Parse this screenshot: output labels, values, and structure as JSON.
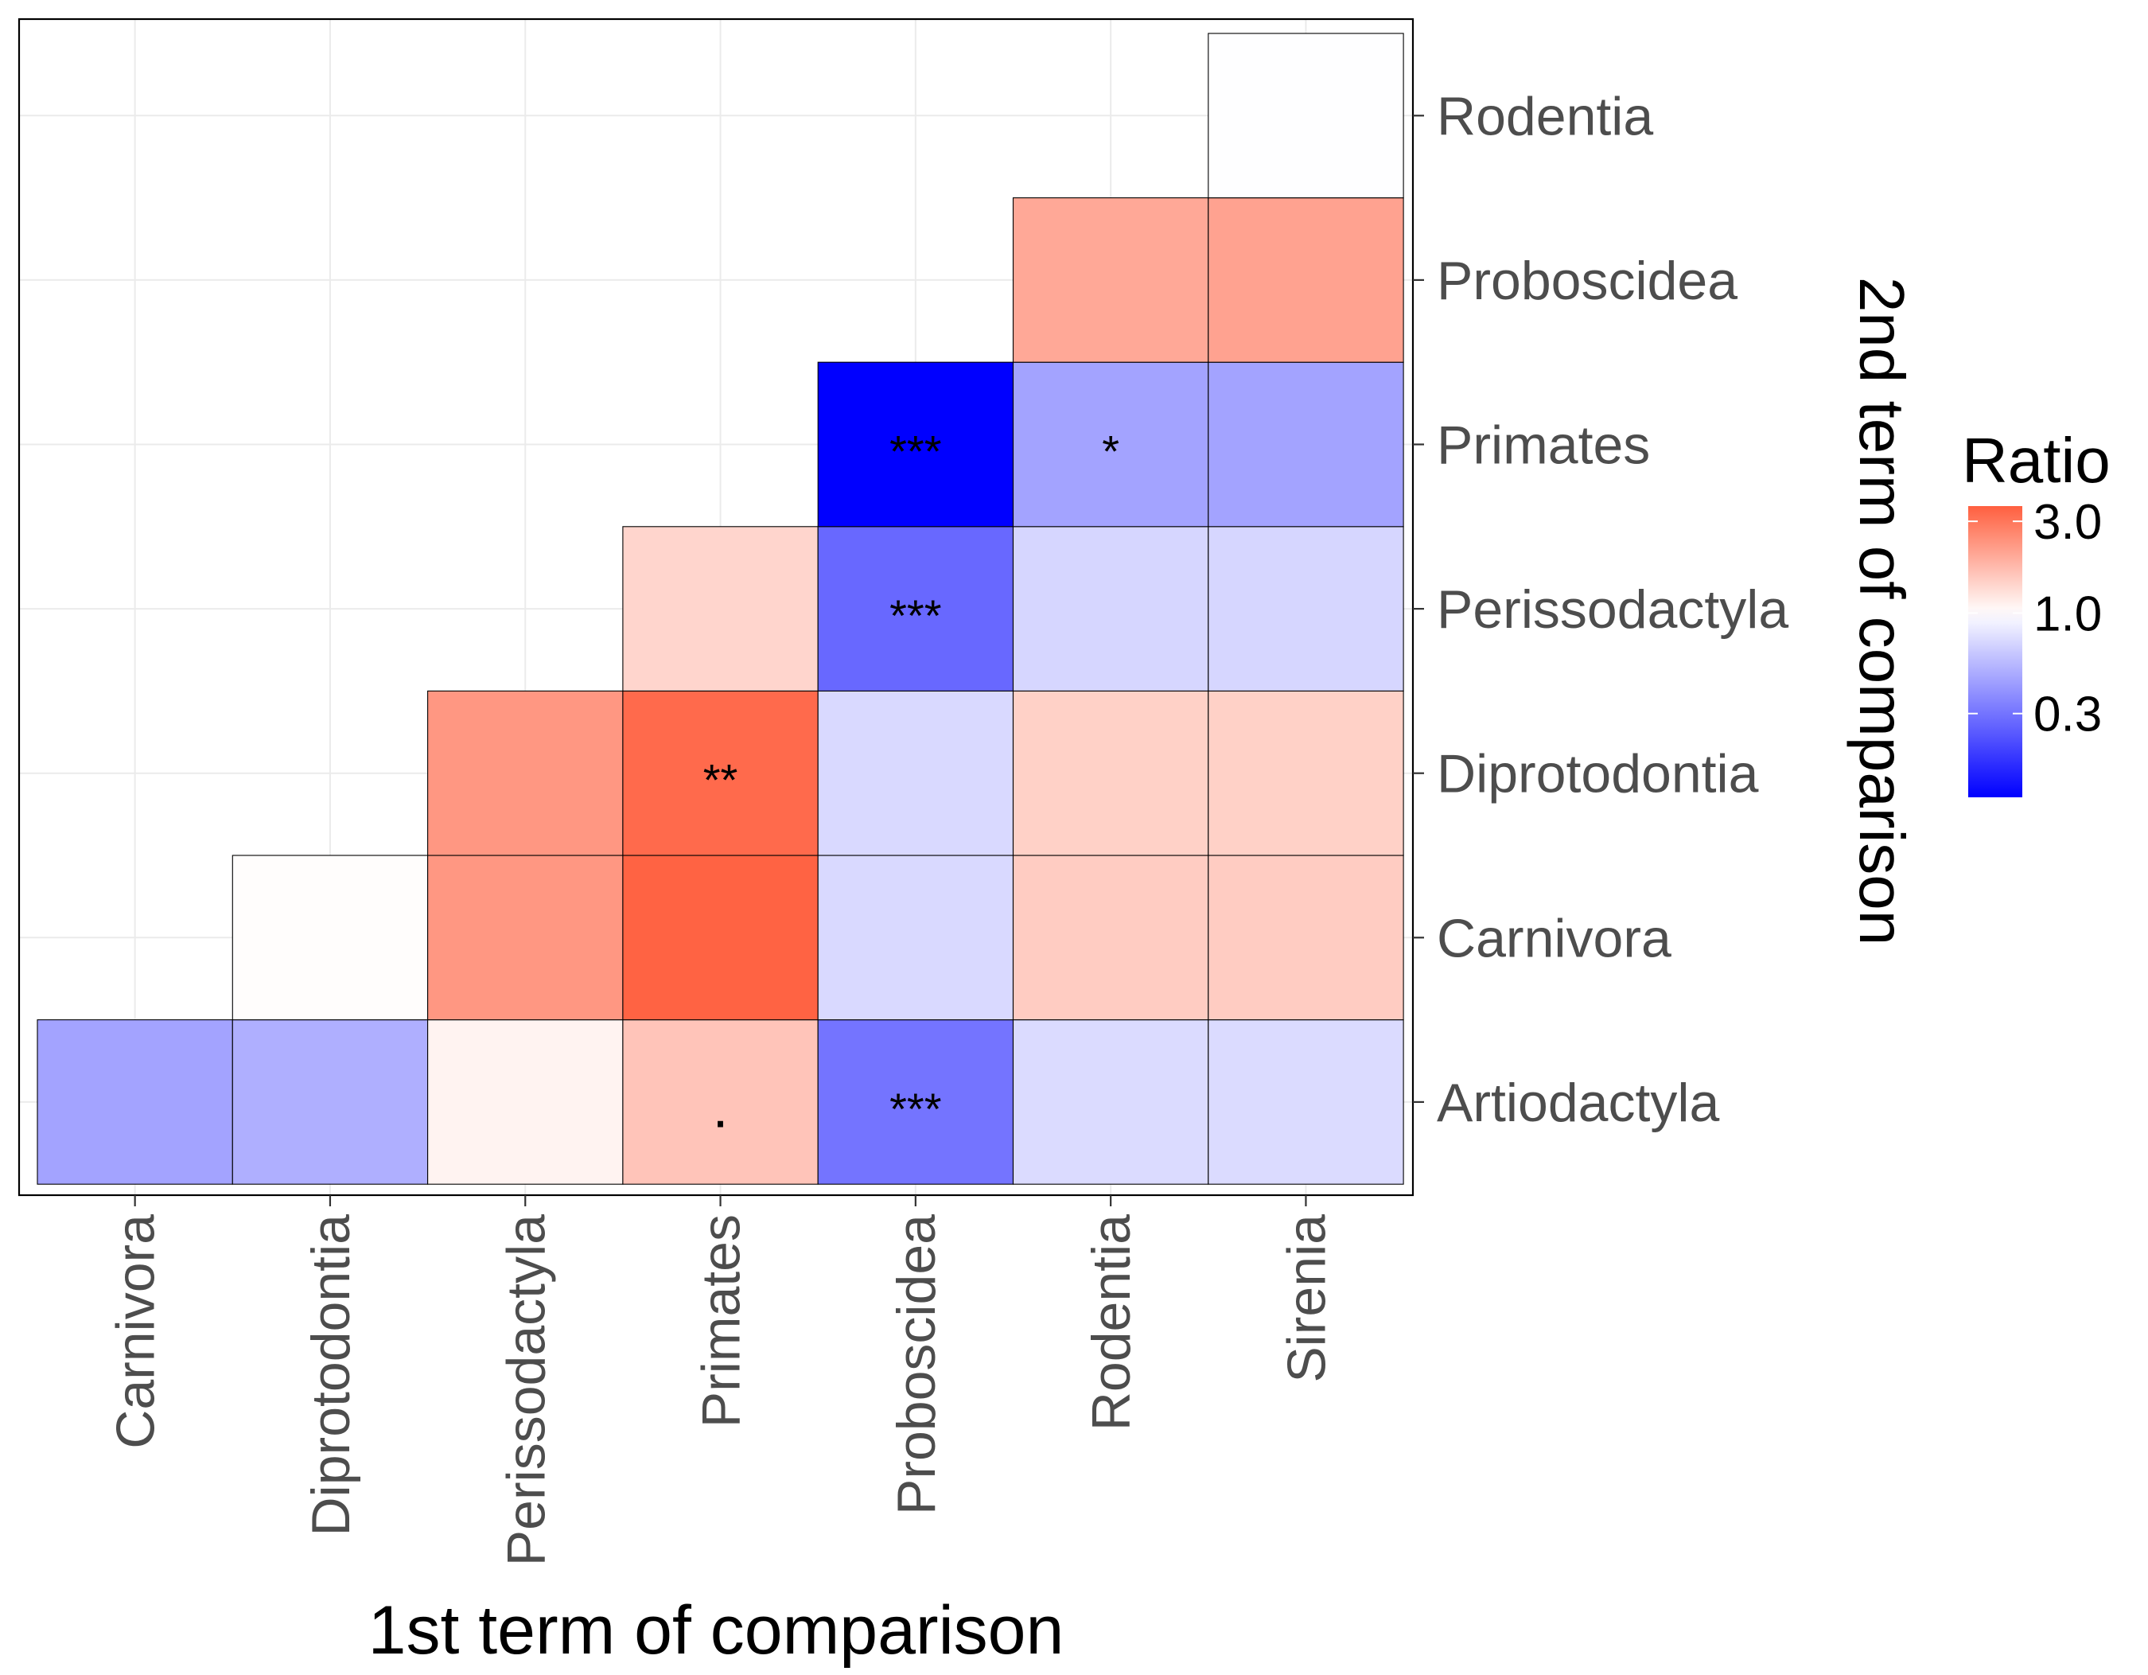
{
  "chart_data": {
    "type": "heatmap",
    "xlabel": "1st term of comparison",
    "ylabel": "2nd term of comparison",
    "x_categories": [
      "Carnivora",
      "Diprotodontia",
      "Perissodactyla",
      "Primates",
      "Proboscidea",
      "Rodentia",
      "Sirenia"
    ],
    "y_categories": [
      "Artiodactyla",
      "Carnivora",
      "Diprotodontia",
      "Perissodactyla",
      "Primates",
      "Proboscidea",
      "Rodentia"
    ],
    "grid": true,
    "scale": "log",
    "cells": [
      {
        "x": "Carnivora",
        "y": "Artiodactyla",
        "value": 0.45,
        "label": ""
      },
      {
        "x": "Diprotodontia",
        "y": "Artiodactyla",
        "value": 0.5,
        "label": ""
      },
      {
        "x": "Diprotodontia",
        "y": "Carnivora",
        "value": 1.02,
        "label": ""
      },
      {
        "x": "Perissodactyla",
        "y": "Artiodactyla",
        "value": 1.1,
        "label": ""
      },
      {
        "x": "Perissodactyla",
        "y": "Carnivora",
        "value": 2.3,
        "label": ""
      },
      {
        "x": "Perissodactyla",
        "y": "Diprotodontia",
        "value": 2.3,
        "label": ""
      },
      {
        "x": "Primates",
        "y": "Artiodactyla",
        "value": 1.6,
        "label": "."
      },
      {
        "x": "Primates",
        "y": "Carnivora",
        "value": 3.5,
        "label": ""
      },
      {
        "x": "Primates",
        "y": "Diprotodontia",
        "value": 3.3,
        "label": "**"
      },
      {
        "x": "Primates",
        "y": "Perissodactyla",
        "value": 1.4,
        "label": ""
      },
      {
        "x": "Proboscidea",
        "y": "Artiodactyla",
        "value": 0.3,
        "label": "***"
      },
      {
        "x": "Proboscidea",
        "y": "Carnivora",
        "value": 0.72,
        "label": ""
      },
      {
        "x": "Proboscidea",
        "y": "Diprotodontia",
        "value": 0.72,
        "label": ""
      },
      {
        "x": "Proboscidea",
        "y": "Perissodactyla",
        "value": 0.27,
        "label": "***"
      },
      {
        "x": "Proboscidea",
        "y": "Primates",
        "value": 0.11,
        "label": "***"
      },
      {
        "x": "Rodentia",
        "y": "Artiodactyla",
        "value": 0.73,
        "label": ""
      },
      {
        "x": "Rodentia",
        "y": "Carnivora",
        "value": 1.5,
        "label": ""
      },
      {
        "x": "Rodentia",
        "y": "Diprotodontia",
        "value": 1.45,
        "label": ""
      },
      {
        "x": "Rodentia",
        "y": "Perissodactyla",
        "value": 0.7,
        "label": ""
      },
      {
        "x": "Rodentia",
        "y": "Primates",
        "value": 0.45,
        "label": "*"
      },
      {
        "x": "Rodentia",
        "y": "Proboscidea",
        "value": 2.0,
        "label": ""
      },
      {
        "x": "Sirenia",
        "y": "Artiodactyla",
        "value": 0.73,
        "label": ""
      },
      {
        "x": "Sirenia",
        "y": "Carnivora",
        "value": 1.5,
        "label": ""
      },
      {
        "x": "Sirenia",
        "y": "Diprotodontia",
        "value": 1.45,
        "label": ""
      },
      {
        "x": "Sirenia",
        "y": "Perissodactyla",
        "value": 0.7,
        "label": ""
      },
      {
        "x": "Sirenia",
        "y": "Primates",
        "value": 0.45,
        "label": ""
      },
      {
        "x": "Sirenia",
        "y": "Proboscidea",
        "value": 2.1,
        "label": ""
      },
      {
        "x": "Sirenia",
        "y": "Rodentia",
        "value": 0.99,
        "label": ""
      }
    ],
    "legend": {
      "title": "Ratio",
      "ticks": [
        {
          "value": 3.0,
          "label": "3.0"
        },
        {
          "value": 1.0,
          "label": "1.0"
        },
        {
          "value": 0.3,
          "label": "0.3"
        }
      ],
      "range": [
        0.11,
        3.6
      ],
      "colors": {
        "low": "#0000ff",
        "mid": "#ffffff",
        "high": "#ff5f3f"
      },
      "placement": "right"
    }
  }
}
